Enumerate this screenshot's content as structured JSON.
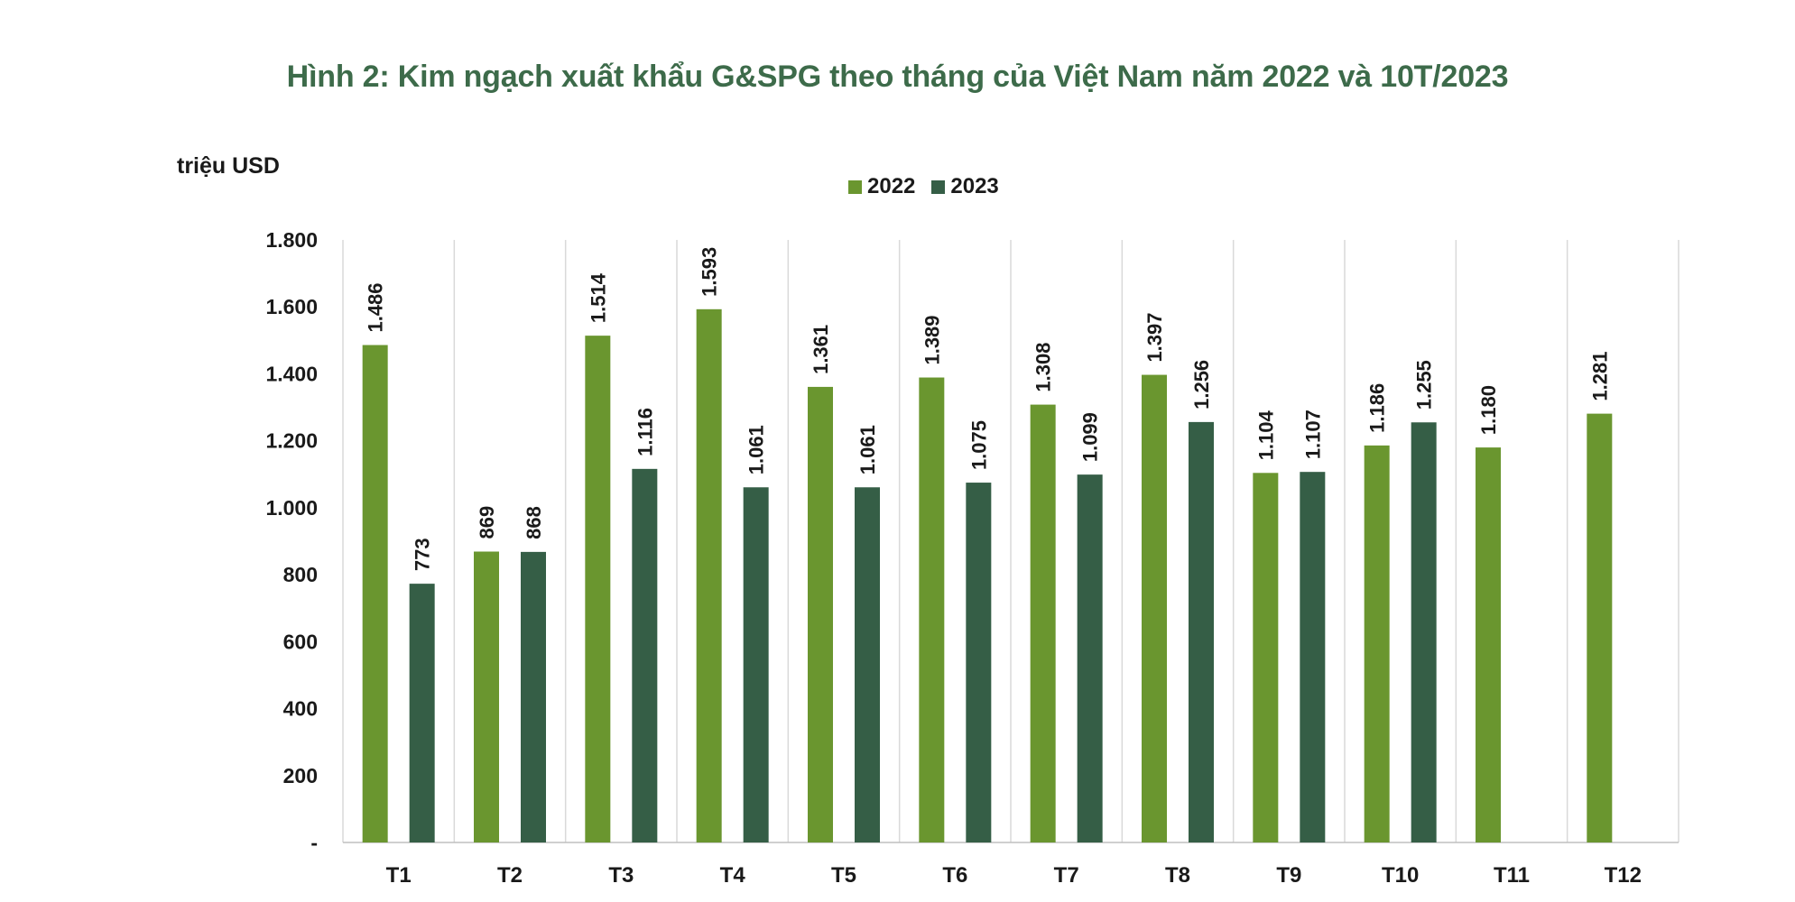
{
  "title": "Hình 2: Kim ngạch xuất khẩu G&SPG theo tháng của Việt Nam năm 2022 và 10T/2023",
  "unit_label": "triệu USD",
  "legend": [
    {
      "label": "2022",
      "color": "#6a962f"
    },
    {
      "label": "2023",
      "color": "#355e46"
    }
  ],
  "chart_data": {
    "type": "bar",
    "categories": [
      "T1",
      "T2",
      "T3",
      "T4",
      "T5",
      "T6",
      "T7",
      "T8",
      "T9",
      "T10",
      "T11",
      "T12"
    ],
    "series": [
      {
        "name": "2022",
        "color": "#6a962f",
        "values": [
          1486,
          869,
          1514,
          1593,
          1361,
          1389,
          1308,
          1397,
          1104,
          1186,
          1180,
          1281
        ],
        "labels": [
          "1.486",
          "869",
          "1.514",
          "1.593",
          "1.361",
          "1.389",
          "1.308",
          "1.397",
          "1.104",
          "1.186",
          "1.180",
          "1.281"
        ]
      },
      {
        "name": "2023",
        "color": "#355e46",
        "values": [
          773,
          868,
          1116,
          1061,
          1061,
          1075,
          1099,
          1256,
          1107,
          1255,
          null,
          null
        ],
        "labels": [
          "773",
          "868",
          "1.116",
          "1.061",
          "1.061",
          "1.075",
          "1.099",
          "1.256",
          "1.107",
          "1.255",
          "",
          ""
        ]
      }
    ],
    "ylabel": "triệu USD",
    "ylim": [
      0,
      1800
    ],
    "yticks": [
      0,
      200,
      400,
      600,
      800,
      1000,
      1200,
      1400,
      1600,
      1800
    ],
    "ytick_labels": [
      "-",
      "200",
      "400",
      "600",
      "800",
      "1.000",
      "1.200",
      "1.400",
      "1.600",
      "1.800"
    ],
    "grid": "vertical category separators",
    "legend_position": "top-center"
  }
}
